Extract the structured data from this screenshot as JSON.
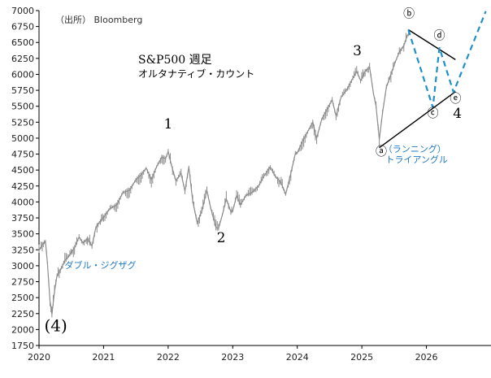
{
  "chart_data": {
    "type": "line",
    "title": "S&P500 週足",
    "subtitle": "オルタナティブ・カウント",
    "source": "（出所） Bloomberg",
    "ylim": [
      1750,
      7000
    ],
    "xlim": [
      2020,
      2027.0
    ],
    "yticks": [
      "7000",
      "6750",
      "6500",
      "6250",
      "6000",
      "5750",
      "5500",
      "5250",
      "5000",
      "4750",
      "4500",
      "4250",
      "4000",
      "3750",
      "3500",
      "3250",
      "3000",
      "2750",
      "2500",
      "2250",
      "2000",
      "1750"
    ],
    "xticks": [
      "2020",
      "2021",
      "2022",
      "2023",
      "2024",
      "2025",
      "2026"
    ],
    "grid": false,
    "series": [
      {
        "color": "#8c8c8c",
        "points": [
          [
            2020.0,
            3240
          ],
          [
            2020.05,
            3330
          ],
          [
            2020.1,
            3380
          ],
          [
            2020.13,
            3050
          ],
          [
            2020.17,
            2450
          ],
          [
            2020.2,
            2237
          ],
          [
            2020.24,
            2600
          ],
          [
            2020.28,
            2850
          ],
          [
            2020.33,
            2930
          ],
          [
            2020.4,
            3080
          ],
          [
            2020.46,
            3150
          ],
          [
            2020.55,
            3280
          ],
          [
            2020.62,
            3450
          ],
          [
            2020.68,
            3360
          ],
          [
            2020.75,
            3420
          ],
          [
            2020.82,
            3310
          ],
          [
            2020.88,
            3600
          ],
          [
            2020.95,
            3700
          ],
          [
            2021.0,
            3760
          ],
          [
            2021.1,
            3900
          ],
          [
            2021.2,
            3950
          ],
          [
            2021.3,
            4150
          ],
          [
            2021.4,
            4180
          ],
          [
            2021.5,
            4350
          ],
          [
            2021.58,
            4420
          ],
          [
            2021.66,
            4530
          ],
          [
            2021.74,
            4350
          ],
          [
            2021.82,
            4550
          ],
          [
            2021.9,
            4700
          ],
          [
            2021.96,
            4680
          ],
          [
            2022.0,
            4790
          ],
          [
            2022.05,
            4580
          ],
          [
            2022.12,
            4330
          ],
          [
            2022.2,
            4450
          ],
          [
            2022.26,
            4170
          ],
          [
            2022.32,
            4550
          ],
          [
            2022.38,
            4020
          ],
          [
            2022.45,
            3670
          ],
          [
            2022.52,
            3850
          ],
          [
            2022.6,
            4180
          ],
          [
            2022.66,
            3900
          ],
          [
            2022.74,
            3600
          ],
          [
            2022.78,
            3585
          ],
          [
            2022.84,
            3800
          ],
          [
            2022.9,
            4050
          ],
          [
            2022.97,
            3850
          ],
          [
            2023.0,
            3860
          ],
          [
            2023.06,
            4100
          ],
          [
            2023.12,
            3950
          ],
          [
            2023.2,
            4100
          ],
          [
            2023.3,
            4150
          ],
          [
            2023.4,
            4250
          ],
          [
            2023.48,
            4400
          ],
          [
            2023.58,
            4550
          ],
          [
            2023.66,
            4400
          ],
          [
            2023.75,
            4300
          ],
          [
            2023.82,
            4120
          ],
          [
            2023.9,
            4450
          ],
          [
            2023.97,
            4760
          ],
          [
            2024.0,
            4770
          ],
          [
            2024.08,
            4950
          ],
          [
            2024.16,
            5100
          ],
          [
            2024.24,
            5250
          ],
          [
            2024.3,
            5000
          ],
          [
            2024.38,
            5300
          ],
          [
            2024.46,
            5450
          ],
          [
            2024.54,
            5600
          ],
          [
            2024.6,
            5350
          ],
          [
            2024.68,
            5650
          ],
          [
            2024.76,
            5750
          ],
          [
            2024.84,
            5900
          ],
          [
            2024.92,
            6050
          ],
          [
            2024.98,
            5900
          ],
          [
            2025.05,
            6050
          ],
          [
            2025.12,
            6110
          ],
          [
            2025.18,
            5700
          ],
          [
            2025.22,
            5500
          ],
          [
            2025.27,
            4980
          ],
          [
            2025.32,
            5400
          ],
          [
            2025.38,
            5800
          ],
          [
            2025.45,
            6000
          ],
          [
            2025.52,
            6200
          ],
          [
            2025.58,
            6350
          ],
          [
            2025.65,
            6450
          ],
          [
            2025.7,
            6600
          ],
          [
            2025.74,
            6660
          ]
        ]
      },
      {
        "color": "#000000",
        "points": [
          [
            2025.72,
            6700
          ],
          [
            2026.45,
            6230
          ]
        ]
      },
      {
        "color": "#000000",
        "points": [
          [
            2025.27,
            4850
          ],
          [
            2026.45,
            5730
          ]
        ]
      },
      {
        "color": "#1e90c8",
        "points": [
          [
            2025.72,
            6700
          ],
          [
            2026.1,
            5480
          ],
          [
            2026.2,
            6420
          ],
          [
            2026.42,
            5720
          ],
          [
            2026.92,
            6990
          ]
        ]
      }
    ],
    "annotations": [
      {
        "text": "(4)",
        "x": 2020.26,
        "y": 1975,
        "style": "serif-large"
      },
      {
        "text": "1",
        "x": 2022.0,
        "y": 5150,
        "style": "serif"
      },
      {
        "text": "2",
        "x": 2022.82,
        "y": 3370,
        "style": "serif"
      },
      {
        "text": "3",
        "x": 2024.93,
        "y": 6300,
        "style": "serif"
      },
      {
        "text": "4",
        "x": 2026.48,
        "y": 5320,
        "style": "serif"
      },
      {
        "text": "ダブル・ジグザグ",
        "x": 2020.95,
        "y": 2960,
        "style": "blue"
      },
      {
        "text": "（ランニング）",
        "x": 2025.82,
        "y": 4780,
        "style": "blue"
      },
      {
        "text": "トライアングル",
        "x": 2025.85,
        "y": 4620,
        "style": "blue"
      },
      {
        "text": "ⓐ",
        "x": 2025.3,
        "y": 4730,
        "style": "circle"
      },
      {
        "text": "ⓑ",
        "x": 2025.73,
        "y": 6890,
        "style": "circle"
      },
      {
        "text": "ⓒ",
        "x": 2026.1,
        "y": 5330,
        "style": "circle"
      },
      {
        "text": "ⓓ",
        "x": 2026.2,
        "y": 6550,
        "style": "circle"
      },
      {
        "text": "ⓔ",
        "x": 2026.45,
        "y": 5560,
        "style": "circle"
      }
    ]
  }
}
